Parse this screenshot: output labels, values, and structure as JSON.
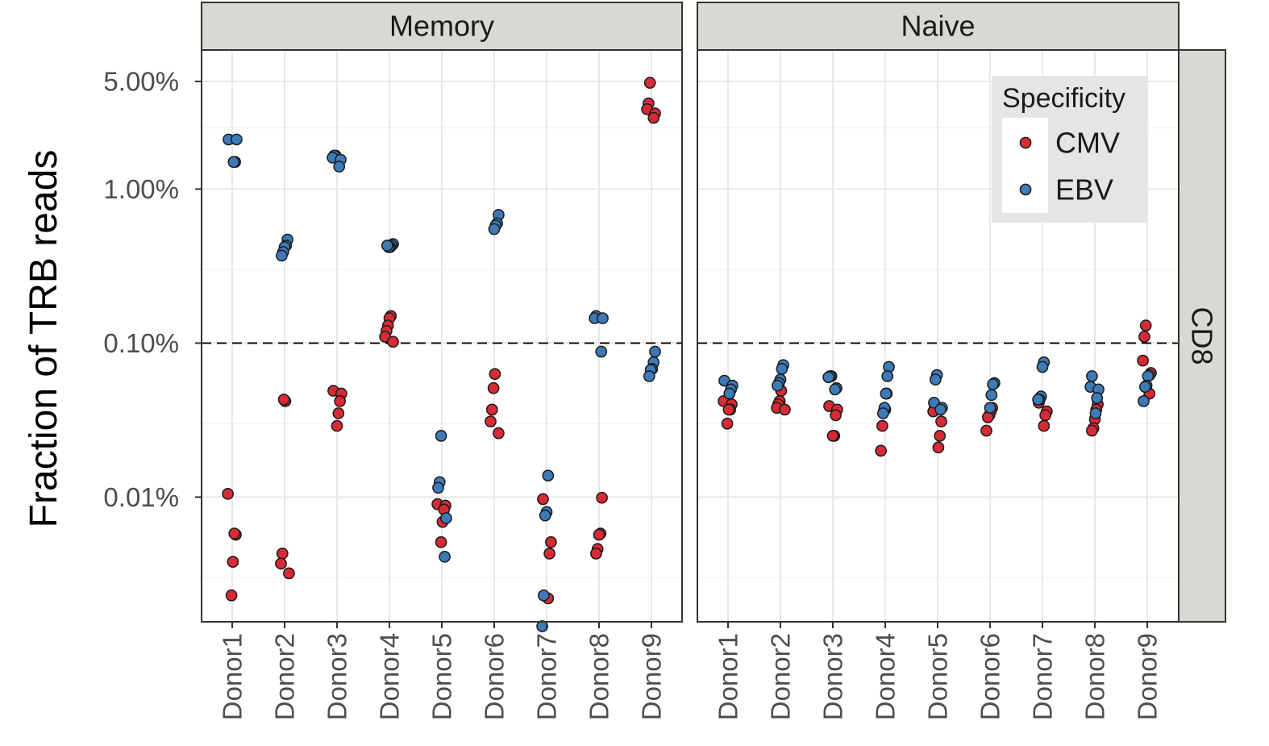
{
  "chart_data": {
    "type": "scatter",
    "ylabel": "Fraction of TRB reads",
    "y_scale": "log10",
    "y_ticks": [
      "5.00%",
      "1.00%",
      "0.10%",
      "0.01%"
    ],
    "y_tick_values": [
      5.0,
      1.0,
      0.1,
      0.01
    ],
    "ylim": [
      0.00155,
      8.0
    ],
    "reference_line": 0.1,
    "categories": [
      "Donor1",
      "Donor2",
      "Donor3",
      "Donor4",
      "Donor5",
      "Donor6",
      "Donor7",
      "Donor8",
      "Donor9"
    ],
    "row_strip": "CD8",
    "legend": {
      "title": "Specificity",
      "position": "top-right",
      "entries": [
        {
          "name": "CMV",
          "color": "#d62b35"
        },
        {
          "name": "EBV",
          "color": "#3d7ab8"
        }
      ]
    },
    "facets": [
      {
        "name": "Memory",
        "series": [
          {
            "name": "CMV",
            "points": [
              {
                "x": "Donor1",
                "y": 0.0105
              },
              {
                "x": "Donor1",
                "y": 0.0057
              },
              {
                "x": "Donor1",
                "y": 0.0058
              },
              {
                "x": "Donor1",
                "y": 0.0038
              },
              {
                "x": "Donor1",
                "y": 0.0023
              },
              {
                "x": "Donor2",
                "y": 0.042
              },
              {
                "x": "Donor2",
                "y": 0.043
              },
              {
                "x": "Donor2",
                "y": 0.0043
              },
              {
                "x": "Donor2",
                "y": 0.0037
              },
              {
                "x": "Donor2",
                "y": 0.0032
              },
              {
                "x": "Donor3",
                "y": 0.049
              },
              {
                "x": "Donor3",
                "y": 0.047
              },
              {
                "x": "Donor3",
                "y": 0.042
              },
              {
                "x": "Donor3",
                "y": 0.035
              },
              {
                "x": "Donor3",
                "y": 0.029
              },
              {
                "x": "Donor4",
                "y": 0.15
              },
              {
                "x": "Donor4",
                "y": 0.145
              },
              {
                "x": "Donor4",
                "y": 0.13
              },
              {
                "x": "Donor4",
                "y": 0.12
              },
              {
                "x": "Donor4",
                "y": 0.11
              },
              {
                "x": "Donor4",
                "y": 0.102
              },
              {
                "x": "Donor5",
                "y": 0.009
              },
              {
                "x": "Donor5",
                "y": 0.0088
              },
              {
                "x": "Donor5",
                "y": 0.0083
              },
              {
                "x": "Donor5",
                "y": 0.0069
              },
              {
                "x": "Donor5",
                "y": 0.0051
              },
              {
                "x": "Donor6",
                "y": 0.063
              },
              {
                "x": "Donor6",
                "y": 0.051
              },
              {
                "x": "Donor6",
                "y": 0.037
              },
              {
                "x": "Donor6",
                "y": 0.031
              },
              {
                "x": "Donor6",
                "y": 0.026
              },
              {
                "x": "Donor7",
                "y": 0.0097
              },
              {
                "x": "Donor7",
                "y": 0.0051
              },
              {
                "x": "Donor7",
                "y": 0.0043
              },
              {
                "x": "Donor7",
                "y": 0.0022
              },
              {
                "x": "Donor8",
                "y": 0.0099
              },
              {
                "x": "Donor8",
                "y": 0.0058
              },
              {
                "x": "Donor8",
                "y": 0.0057
              },
              {
                "x": "Donor8",
                "y": 0.0046
              },
              {
                "x": "Donor8",
                "y": 0.0043
              },
              {
                "x": "Donor9",
                "y": 4.9
              },
              {
                "x": "Donor9",
                "y": 3.6
              },
              {
                "x": "Donor9",
                "y": 3.3
              },
              {
                "x": "Donor9",
                "y": 3.1
              },
              {
                "x": "Donor9",
                "y": 2.9
              }
            ]
          },
          {
            "name": "EBV",
            "points": [
              {
                "x": "Donor1",
                "y": 2.1
              },
              {
                "x": "Donor1",
                "y": 2.1
              },
              {
                "x": "Donor1",
                "y": 1.5
              },
              {
                "x": "Donor1",
                "y": 1.5
              },
              {
                "x": "Donor2",
                "y": 0.47
              },
              {
                "x": "Donor2",
                "y": 0.43
              },
              {
                "x": "Donor2",
                "y": 0.42
              },
              {
                "x": "Donor2",
                "y": 0.39
              },
              {
                "x": "Donor2",
                "y": 0.37
              },
              {
                "x": "Donor3",
                "y": 1.65
              },
              {
                "x": "Donor3",
                "y": 1.65
              },
              {
                "x": "Donor3",
                "y": 1.6
              },
              {
                "x": "Donor3",
                "y": 1.55
              },
              {
                "x": "Donor3",
                "y": 1.4
              },
              {
                "x": "Donor4",
                "y": 0.44
              },
              {
                "x": "Donor4",
                "y": 0.43
              },
              {
                "x": "Donor4",
                "y": 0.42
              },
              {
                "x": "Donor4",
                "y": 0.42
              },
              {
                "x": "Donor4",
                "y": 0.43
              },
              {
                "x": "Donor5",
                "y": 0.025
              },
              {
                "x": "Donor5",
                "y": 0.0125
              },
              {
                "x": "Donor5",
                "y": 0.0115
              },
              {
                "x": "Donor5",
                "y": 0.0073
              },
              {
                "x": "Donor5",
                "y": 0.0041
              },
              {
                "x": "Donor6",
                "y": 0.68
              },
              {
                "x": "Donor6",
                "y": 0.6
              },
              {
                "x": "Donor6",
                "y": 0.58
              },
              {
                "x": "Donor6",
                "y": 0.55
              },
              {
                "x": "Donor7",
                "y": 0.0138
              },
              {
                "x": "Donor7",
                "y": 0.008
              },
              {
                "x": "Donor7",
                "y": 0.0076
              },
              {
                "x": "Donor7",
                "y": 0.0023
              },
              {
                "x": "Donor7",
                "y": 0.00145
              },
              {
                "x": "Donor8",
                "y": 0.15
              },
              {
                "x": "Donor8",
                "y": 0.145
              },
              {
                "x": "Donor8",
                "y": 0.145
              },
              {
                "x": "Donor8",
                "y": 0.088
              },
              {
                "x": "Donor9",
                "y": 0.088
              },
              {
                "x": "Donor9",
                "y": 0.075
              },
              {
                "x": "Donor9",
                "y": 0.068
              },
              {
                "x": "Donor9",
                "y": 0.067
              },
              {
                "x": "Donor9",
                "y": 0.061
              }
            ]
          }
        ]
      },
      {
        "name": "Naive",
        "series": [
          {
            "name": "CMV",
            "points": [
              {
                "x": "Donor1",
                "y": 0.042
              },
              {
                "x": "Donor1",
                "y": 0.04
              },
              {
                "x": "Donor1",
                "y": 0.037
              },
              {
                "x": "Donor1",
                "y": 0.037
              },
              {
                "x": "Donor1",
                "y": 0.03
              },
              {
                "x": "Donor2",
                "y": 0.049
              },
              {
                "x": "Donor2",
                "y": 0.042
              },
              {
                "x": "Donor2",
                "y": 0.04
              },
              {
                "x": "Donor2",
                "y": 0.038
              },
              {
                "x": "Donor2",
                "y": 0.037
              },
              {
                "x": "Donor3",
                "y": 0.039
              },
              {
                "x": "Donor3",
                "y": 0.037
              },
              {
                "x": "Donor3",
                "y": 0.034
              },
              {
                "x": "Donor3",
                "y": 0.025
              },
              {
                "x": "Donor3",
                "y": 0.025
              },
              {
                "x": "Donor4",
                "y": 0.047
              },
              {
                "x": "Donor4",
                "y": 0.037
              },
              {
                "x": "Donor4",
                "y": 0.036
              },
              {
                "x": "Donor4",
                "y": 0.029
              },
              {
                "x": "Donor4",
                "y": 0.02
              },
              {
                "x": "Donor5",
                "y": 0.038
              },
              {
                "x": "Donor5",
                "y": 0.036
              },
              {
                "x": "Donor5",
                "y": 0.031
              },
              {
                "x": "Donor5",
                "y": 0.025
              },
              {
                "x": "Donor5",
                "y": 0.021
              },
              {
                "x": "Donor6",
                "y": 0.038
              },
              {
                "x": "Donor6",
                "y": 0.036
              },
              {
                "x": "Donor6",
                "y": 0.034
              },
              {
                "x": "Donor6",
                "y": 0.033
              },
              {
                "x": "Donor6",
                "y": 0.027
              },
              {
                "x": "Donor7",
                "y": 0.044
              },
              {
                "x": "Donor7",
                "y": 0.041
              },
              {
                "x": "Donor7",
                "y": 0.036
              },
              {
                "x": "Donor7",
                "y": 0.034
              },
              {
                "x": "Donor7",
                "y": 0.029
              },
              {
                "x": "Donor8",
                "y": 0.04
              },
              {
                "x": "Donor8",
                "y": 0.037
              },
              {
                "x": "Donor8",
                "y": 0.032
              },
              {
                "x": "Donor8",
                "y": 0.028
              },
              {
                "x": "Donor8",
                "y": 0.027
              },
              {
                "x": "Donor9",
                "y": 0.13
              },
              {
                "x": "Donor9",
                "y": 0.11
              },
              {
                "x": "Donor9",
                "y": 0.077
              },
              {
                "x": "Donor9",
                "y": 0.064
              },
              {
                "x": "Donor9",
                "y": 0.047
              }
            ]
          },
          {
            "name": "EBV",
            "points": [
              {
                "x": "Donor1",
                "y": 0.057
              },
              {
                "x": "Donor1",
                "y": 0.053
              },
              {
                "x": "Donor1",
                "y": 0.05
              },
              {
                "x": "Donor1",
                "y": 0.047
              },
              {
                "x": "Donor2",
                "y": 0.072
              },
              {
                "x": "Donor2",
                "y": 0.068
              },
              {
                "x": "Donor2",
                "y": 0.058
              },
              {
                "x": "Donor2",
                "y": 0.055
              },
              {
                "x": "Donor2",
                "y": 0.053
              },
              {
                "x": "Donor3",
                "y": 0.061
              },
              {
                "x": "Donor3",
                "y": 0.061
              },
              {
                "x": "Donor3",
                "y": 0.06
              },
              {
                "x": "Donor3",
                "y": 0.051
              },
              {
                "x": "Donor3",
                "y": 0.05
              },
              {
                "x": "Donor4",
                "y": 0.07
              },
              {
                "x": "Donor4",
                "y": 0.061
              },
              {
                "x": "Donor4",
                "y": 0.047
              },
              {
                "x": "Donor4",
                "y": 0.038
              },
              {
                "x": "Donor4",
                "y": 0.035
              },
              {
                "x": "Donor5",
                "y": 0.062
              },
              {
                "x": "Donor5",
                "y": 0.058
              },
              {
                "x": "Donor5",
                "y": 0.041
              },
              {
                "x": "Donor5",
                "y": 0.038
              },
              {
                "x": "Donor5",
                "y": 0.037
              },
              {
                "x": "Donor6",
                "y": 0.055
              },
              {
                "x": "Donor6",
                "y": 0.054
              },
              {
                "x": "Donor6",
                "y": 0.046
              },
              {
                "x": "Donor6",
                "y": 0.038
              },
              {
                "x": "Donor7",
                "y": 0.075
              },
              {
                "x": "Donor7",
                "y": 0.07
              },
              {
                "x": "Donor7",
                "y": 0.045
              },
              {
                "x": "Donor7",
                "y": 0.043
              },
              {
                "x": "Donor7",
                "y": 0.043
              },
              {
                "x": "Donor8",
                "y": 0.061
              },
              {
                "x": "Donor8",
                "y": 0.052
              },
              {
                "x": "Donor8",
                "y": 0.05
              },
              {
                "x": "Donor8",
                "y": 0.044
              },
              {
                "x": "Donor8",
                "y": 0.035
              },
              {
                "x": "Donor9",
                "y": 0.062
              },
              {
                "x": "Donor9",
                "y": 0.061
              },
              {
                "x": "Donor9",
                "y": 0.053
              },
              {
                "x": "Donor9",
                "y": 0.052
              },
              {
                "x": "Donor9",
                "y": 0.042
              }
            ]
          }
        ]
      }
    ]
  }
}
